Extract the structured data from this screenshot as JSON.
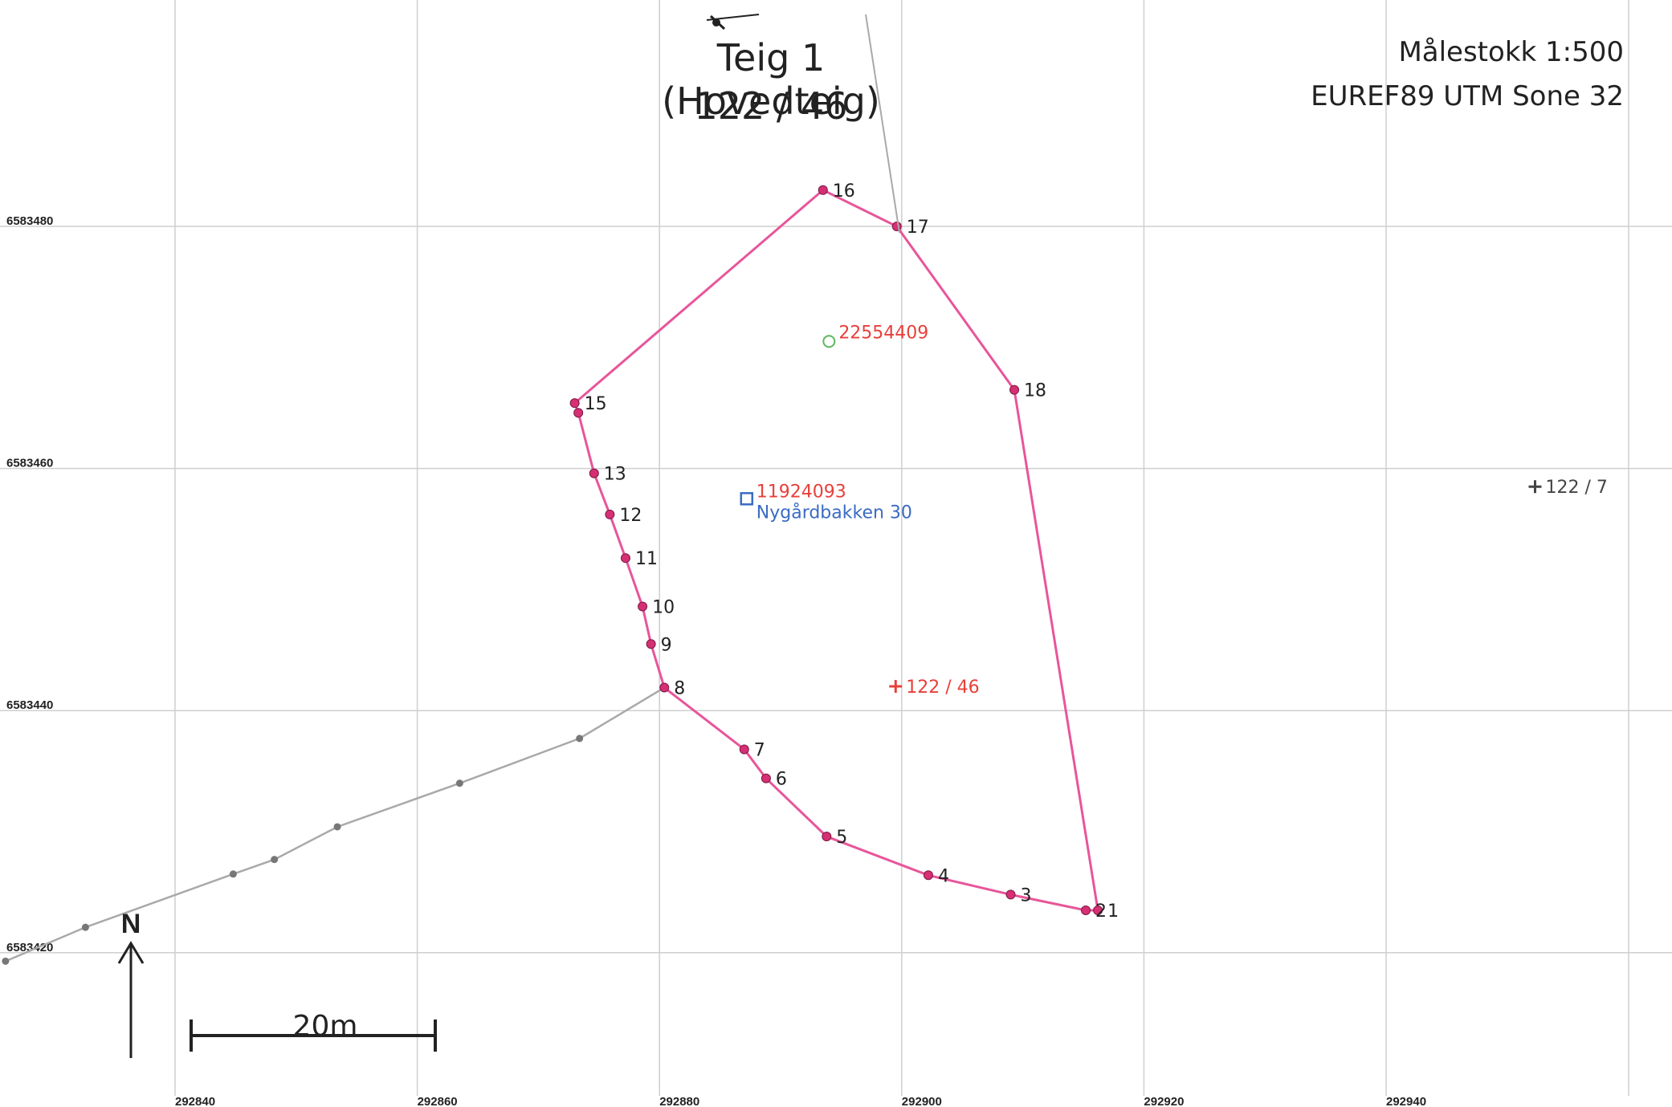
{
  "title": "Teig 1 (Hovedteig)",
  "subtitle": "122 / 46",
  "scale_text": "Målestokk 1:500",
  "datum_text": "EUREF89 UTM Sone 32",
  "north_label": "N",
  "scalebar_label": "20m",
  "colors": {
    "boundary": "#e8559a",
    "point": "#d62f73",
    "neighbor_line": "#a9a9a9",
    "label_red": "#e8403a",
    "label_blue": "#3a6bc4",
    "grid": "#cfcfcf"
  },
  "grid": {
    "easting_labels": [
      "292840",
      "292860",
      "292880",
      "292900",
      "292920",
      "292940"
    ],
    "northing_labels": [
      "6583480",
      "6583460",
      "6583440",
      "6583420"
    ]
  },
  "boundary_points": [
    {
      "label": "1",
      "e": 292916.2,
      "n": 6583423.5
    },
    {
      "label": "2",
      "e": 292915.2,
      "n": 6583423.5
    },
    {
      "label": "3",
      "e": 292909.0,
      "n": 6583424.8
    },
    {
      "label": "4",
      "e": 292902.2,
      "n": 6583426.4
    },
    {
      "label": "5",
      "e": 292893.8,
      "n": 6583429.6
    },
    {
      "label": "6",
      "e": 292888.8,
      "n": 6583434.4
    },
    {
      "label": "7",
      "e": 292887.0,
      "n": 6583436.8
    },
    {
      "label": "8",
      "e": 292880.4,
      "n": 6583441.9
    },
    {
      "label": "9",
      "e": 292879.3,
      "n": 6583445.5
    },
    {
      "label": "10",
      "e": 292878.6,
      "n": 6583448.6
    },
    {
      "label": "11",
      "e": 292877.2,
      "n": 6583452.6
    },
    {
      "label": "12",
      "e": 292875.9,
      "n": 6583456.2
    },
    {
      "label": "13",
      "e": 292874.6,
      "n": 6583459.6
    },
    {
      "label": "",
      "e": 292873.3,
      "n": 6583464.6
    },
    {
      "label": "15",
      "e": 292873.0,
      "n": 6583465.4
    },
    {
      "label": "16",
      "e": 292893.5,
      "n": 6583483.0
    },
    {
      "label": "17",
      "e": 292899.6,
      "n": 6583480.0
    },
    {
      "label": "18",
      "e": 292909.3,
      "n": 6583466.5
    }
  ],
  "neighbor_line": [
    {
      "e": 292826.0,
      "n": 6583419.3
    },
    {
      "e": 292832.6,
      "n": 6583422.1
    },
    {
      "e": 292844.8,
      "n": 6583426.5
    },
    {
      "e": 292848.2,
      "n": 6583427.7
    },
    {
      "e": 292853.4,
      "n": 6583430.4
    },
    {
      "e": 292863.5,
      "n": 6583434.0
    },
    {
      "e": 292873.4,
      "n": 6583437.7
    },
    {
      "e": 292880.4,
      "n": 6583441.9
    }
  ],
  "markers": [
    {
      "kind": "circle",
      "label": "22554409",
      "e": 292894.0,
      "n": 6583470.5,
      "color_key": "label_red"
    },
    {
      "kind": "square",
      "label": "11924093",
      "label2": "Nygårdbakken 30",
      "e": 292887.2,
      "n": 6583457.5
    },
    {
      "kind": "cross",
      "label": "122 / 46",
      "e": 292899.5,
      "n": 6583442.0,
      "color_key": "label_red"
    },
    {
      "kind": "cross",
      "label": "122 / 7",
      "e": 292952.3,
      "n": 6583458.5,
      "color": "#444444"
    }
  ]
}
